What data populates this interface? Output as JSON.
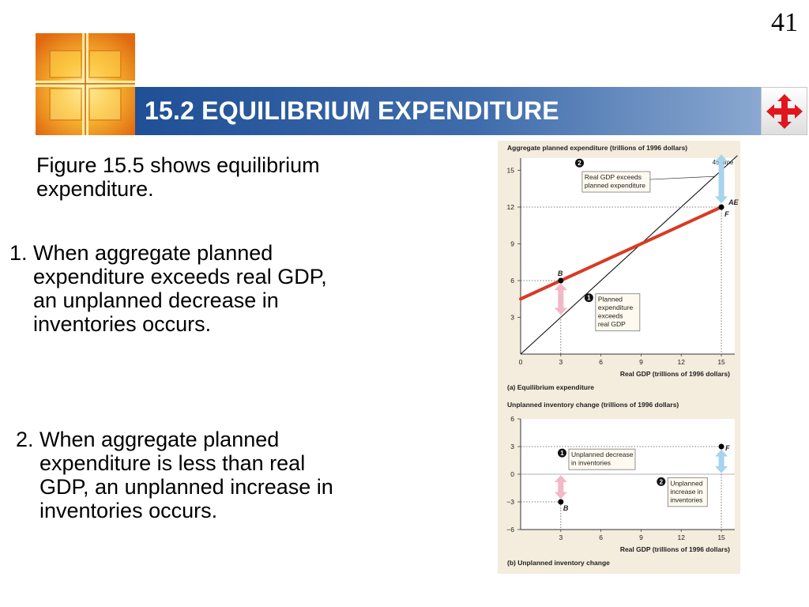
{
  "slide": {
    "page_number": "41",
    "title": "15.2 EQUILIBRIUM EXPENDITURE",
    "intro": "Figure 15.5 shows equilibrium expenditure.",
    "points": [
      "1. When aggregate planned expenditure exceeds real GDP, an unplanned decrease in inventories occurs.",
      "2. When aggregate planned expenditure is less than real GDP, an unplanned increase in inventories occurs."
    ]
  },
  "icons": {
    "logo": "window-cross-logo",
    "nav": "four-way-arrow-icon"
  },
  "colors": {
    "title_bar": "#2a5a9e",
    "ae_line": "#d93a24",
    "figure_bg": "#f4ecdc",
    "arrow_blue": "#a7d3ee",
    "arrow_pink": "#f2b8c8"
  },
  "chart_data": [
    {
      "type": "line",
      "title": "(a) Equilibrium expenditure",
      "ylabel": "Aggregate planned expenditure (trillions of 1996 dollars)",
      "xlabel": "Real GDP (trillions of 1996 dollars)",
      "xlim": [
        0,
        16
      ],
      "ylim": [
        0,
        16
      ],
      "xticks": [
        0,
        3,
        6,
        9,
        12,
        15
      ],
      "yticks": [
        3,
        6,
        9,
        12,
        15
      ],
      "series": [
        {
          "name": "AE",
          "x": [
            0,
            15
          ],
          "y": [
            4.5,
            12
          ]
        },
        {
          "name": "45° line",
          "x": [
            0,
            16.2
          ],
          "y": [
            0,
            16.2
          ]
        }
      ],
      "points": [
        {
          "label": "B",
          "x": 3,
          "y": 6
        },
        {
          "label": "F",
          "x": 15,
          "y": 12
        }
      ],
      "annotations": [
        {
          "num": "1",
          "lines": [
            "Planned",
            "expenditure",
            "exceeds",
            "real GDP"
          ]
        },
        {
          "num": "2",
          "lines": [
            "Real GDP exceeds",
            "planned expenditure"
          ]
        }
      ]
    },
    {
      "type": "scatter",
      "title": "(b) Unplanned inventory change",
      "ylabel": "Unplanned inventory change (trillions of 1996 dollars)",
      "xlabel": "Real GDP (trillions of 1996 dollars)",
      "xlim": [
        0,
        16
      ],
      "ylim": [
        -6,
        6
      ],
      "xticks": [
        3,
        6,
        9,
        12,
        15
      ],
      "yticks": [
        6,
        3,
        0,
        -3,
        -6
      ],
      "ytick_labels": [
        "6",
        "3",
        "0",
        "−3",
        "−6"
      ],
      "points": [
        {
          "label": "B",
          "x": 3,
          "y": -3
        },
        {
          "label": "F",
          "x": 15,
          "y": 3
        }
      ],
      "annotations": [
        {
          "num": "1",
          "lines": [
            "Unplanned decrease",
            "in inventories"
          ]
        },
        {
          "num": "2",
          "lines": [
            "Unplanned",
            "increase in",
            "inventories"
          ]
        }
      ]
    }
  ]
}
